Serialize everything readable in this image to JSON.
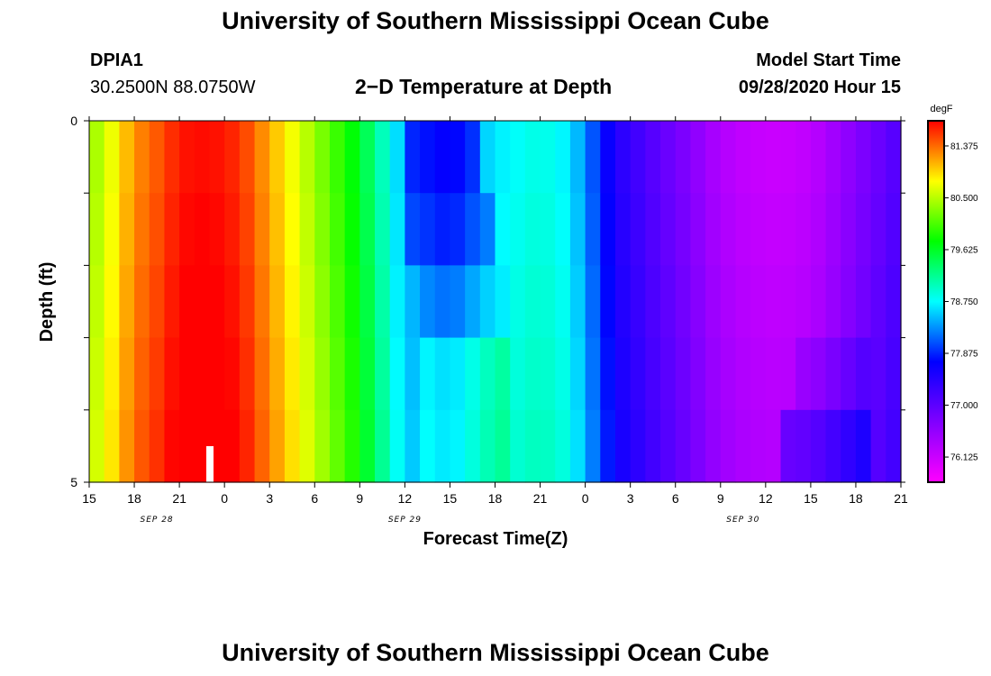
{
  "page": {
    "title": "University of Southern Mississippi Ocean Cube",
    "footer_title": "University of Southern Mississippi Ocean Cube",
    "station_id": "DPIA1",
    "location": "30.2500N 88.0750W",
    "chart_title": "2−D Temperature at Depth",
    "model_label": "Model Start Time",
    "model_time": "09/28/2020 Hour 15"
  },
  "chart_data": {
    "type": "heatmap",
    "title": "2−D Temperature at Depth",
    "xlabel": "Forecast Time(Z)",
    "ylabel": "Depth (ft)",
    "x_ticks": [
      "15",
      "18",
      "21",
      "0",
      "3",
      "6",
      "9",
      "12",
      "15",
      "18",
      "21",
      "0",
      "3",
      "6",
      "9",
      "12",
      "15",
      "18",
      "21"
    ],
    "date_labels": [
      {
        "text": "SEP 28",
        "tick_index": 1.5
      },
      {
        "text": "SEP 29",
        "tick_index": 7
      },
      {
        "text": "SEP 30",
        "tick_index": 14.5
      }
    ],
    "y_ticks": [
      "0",
      "5"
    ],
    "ylim": [
      0,
      5
    ],
    "n_hours": 54,
    "depth_bands": 5,
    "colorbar": {
      "unit": "degF",
      "labels": [
        "81.375",
        "80.500",
        "79.625",
        "78.750",
        "77.875",
        "77.000",
        "76.125"
      ],
      "range": [
        75.7,
        81.8
      ],
      "colors": [
        "#ff00ff",
        "#8000ff",
        "#0000ff",
        "#00ffff",
        "#00ff00",
        "#ffff00",
        "#ff0000"
      ]
    },
    "temperature_profile": [
      [
        0,
        80.4
      ],
      [
        1.5,
        80.8
      ],
      [
        3,
        81.3
      ],
      [
        5,
        81.6
      ],
      [
        6,
        81.8
      ],
      [
        8,
        81.85
      ],
      [
        10,
        81.7
      ],
      [
        12,
        81.2
      ],
      [
        14,
        80.7
      ],
      [
        16,
        80.2
      ],
      [
        18,
        79.7
      ],
      [
        19,
        79.3
      ],
      [
        21,
        78.5
      ],
      [
        24,
        78.25
      ],
      [
        27,
        78.75
      ],
      [
        30,
        78.95
      ],
      [
        32,
        78.75
      ],
      [
        33,
        78.35
      ],
      [
        35,
        77.55
      ],
      [
        38,
        77.05
      ],
      [
        40,
        76.75
      ],
      [
        42,
        76.4
      ],
      [
        44,
        76.25
      ],
      [
        46,
        76.2
      ],
      [
        48,
        76.3
      ],
      [
        50,
        76.6
      ],
      [
        52,
        76.9
      ],
      [
        54,
        77.2
      ]
    ],
    "depth_anomalies": [
      {
        "band": 0,
        "x_start": 21,
        "x_end": 26,
        "delta": -0.5
      },
      {
        "band": 1,
        "x_start": 21,
        "x_end": 27,
        "delta": -0.4
      },
      {
        "band": 2,
        "x_start": 22,
        "x_end": 28,
        "delta": -0.1
      },
      {
        "band": 3,
        "x_start": 22,
        "x_end": 28,
        "delta": 0.3
      },
      {
        "band": 4,
        "x_start": 22,
        "x_end": 28,
        "delta": 0.3
      },
      {
        "band": 4,
        "x_start": 46,
        "x_end": 52,
        "delta": 0.6
      },
      {
        "band": 3,
        "x_start": 47,
        "x_end": 52,
        "delta": 0.2
      }
    ]
  }
}
